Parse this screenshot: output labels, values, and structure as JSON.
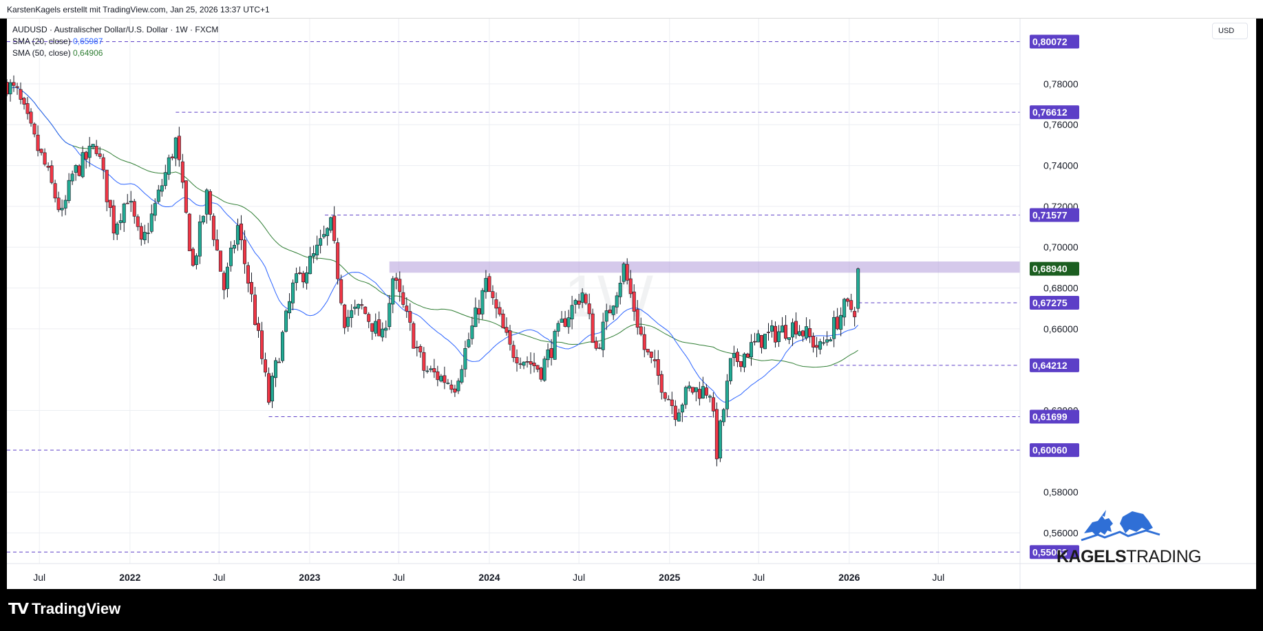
{
  "header": {
    "attribution": "KarstenKagels erstellt mit TradingView.com, Jan 25, 2026 13:37 UTC+1"
  },
  "legend": {
    "symbol_line": "AUDUSD · Australischer Dollar/U.S. Dollar · 1W · FXCM",
    "sma20_label": "SMA (20, close)",
    "sma20_value": "0,65987",
    "sma50_label": "SMA (50, close)",
    "sma50_value": "0,64906"
  },
  "currency": "USD",
  "timeframe_watermark": "1W",
  "logo": {
    "bold": "KAGELS",
    "light": "TRADING"
  },
  "footer": {
    "brand": "TradingView",
    "brand_icon": "tradingview-logo-icon"
  },
  "colors": {
    "bull": "#22ab94",
    "bear": "#f23645",
    "candle_border": "#131722",
    "sma20": "#2962ff",
    "sma50": "#2e7d32",
    "level": "#5c3fc7",
    "zone": "#b39ddb",
    "last_price": "#1b5e20"
  },
  "chart_data": {
    "type": "candlestick",
    "y_range": [
      0.545,
      0.812
    ],
    "x_range": [
      "2021-04-26",
      "2026-12-14"
    ],
    "y_ticks": [
      "0,78000",
      "0,76000",
      "0,74000",
      "0,72000",
      "0,70000",
      "0,68000",
      "0,66000",
      "0,62000",
      "0,58000",
      "0,56000"
    ],
    "x_ticks": [
      {
        "label": "Jul",
        "date": "2021-07-01",
        "bold": false
      },
      {
        "label": "2022",
        "date": "2022-01-01",
        "bold": true
      },
      {
        "label": "Jul",
        "date": "2022-07-01",
        "bold": false
      },
      {
        "label": "2023",
        "date": "2023-01-01",
        "bold": true
      },
      {
        "label": "Jul",
        "date": "2023-07-01",
        "bold": false
      },
      {
        "label": "2024",
        "date": "2024-01-01",
        "bold": true
      },
      {
        "label": "Jul",
        "date": "2024-07-01",
        "bold": false
      },
      {
        "label": "2025",
        "date": "2025-01-01",
        "bold": true
      },
      {
        "label": "Jul",
        "date": "2025-07-01",
        "bold": false
      },
      {
        "label": "2026",
        "date": "2026-01-01",
        "bold": true
      },
      {
        "label": "Jul",
        "date": "2026-07-01",
        "bold": false
      }
    ],
    "levels": [
      {
        "label": "0,80072",
        "value": 0.80072,
        "start": "2021-04-26"
      },
      {
        "label": "0,76612",
        "value": 0.76612,
        "start": "2022-04-04"
      },
      {
        "label": "0,71577",
        "value": 0.71577,
        "start": "2023-02-01"
      },
      {
        "label": "0,67275",
        "value": 0.67275,
        "start": "2026-01-20"
      },
      {
        "label": "0,64212",
        "value": 0.64212,
        "start": "2025-12-01"
      },
      {
        "label": "0,61699",
        "value": 0.61699,
        "start": "2022-10-10"
      },
      {
        "label": "0,60060",
        "value": 0.6006,
        "start": "2021-04-26"
      },
      {
        "label": "0,55063",
        "value": 0.55063,
        "start": "2021-04-26"
      }
    ],
    "resistance_zone": {
      "low": 0.6875,
      "high": 0.693,
      "start": "2023-06-12"
    },
    "last_price": {
      "label": "0,68940",
      "value": 0.6894
    },
    "anchors": [
      [
        "2021-04-26",
        0.78
      ],
      [
        "2021-05-17",
        0.775
      ],
      [
        "2021-06-21",
        0.752
      ],
      [
        "2021-07-12",
        0.74
      ],
      [
        "2021-08-16",
        0.715
      ],
      [
        "2021-09-06",
        0.735
      ],
      [
        "2021-10-25",
        0.75
      ],
      [
        "2021-11-29",
        0.71
      ],
      [
        "2021-12-27",
        0.725
      ],
      [
        "2022-01-24",
        0.7
      ],
      [
        "2022-02-21",
        0.72
      ],
      [
        "2022-04-04",
        0.752
      ],
      [
        "2022-05-09",
        0.69
      ],
      [
        "2022-06-06",
        0.725
      ],
      [
        "2022-07-11",
        0.68
      ],
      [
        "2022-08-08",
        0.71
      ],
      [
        "2022-09-05",
        0.675
      ],
      [
        "2022-10-10",
        0.625
      ],
      [
        "2022-11-28",
        0.68
      ],
      [
        "2023-01-09",
        0.695
      ],
      [
        "2023-02-13",
        0.71
      ],
      [
        "2023-03-13",
        0.665
      ],
      [
        "2023-04-17",
        0.67
      ],
      [
        "2023-05-29",
        0.655
      ],
      [
        "2023-06-19",
        0.685
      ],
      [
        "2023-08-21",
        0.64
      ],
      [
        "2023-10-23",
        0.633
      ],
      [
        "2023-12-25",
        0.682
      ],
      [
        "2024-02-12",
        0.65
      ],
      [
        "2024-04-15",
        0.64
      ],
      [
        "2024-06-03",
        0.665
      ],
      [
        "2024-07-08",
        0.678
      ],
      [
        "2024-08-05",
        0.65
      ],
      [
        "2024-09-30",
        0.69
      ],
      [
        "2024-11-11",
        0.65
      ],
      [
        "2025-01-13",
        0.62
      ],
      [
        "2025-02-10",
        0.63
      ],
      [
        "2025-03-24",
        0.63
      ],
      [
        "2025-04-07",
        0.6
      ],
      [
        "2025-05-05",
        0.642
      ],
      [
        "2025-07-07",
        0.655
      ],
      [
        "2025-09-15",
        0.662
      ],
      [
        "2025-11-03",
        0.65
      ],
      [
        "2025-12-22",
        0.67
      ],
      [
        "2026-01-12",
        0.67
      ],
      [
        "2026-01-19",
        0.6894
      ]
    ]
  }
}
